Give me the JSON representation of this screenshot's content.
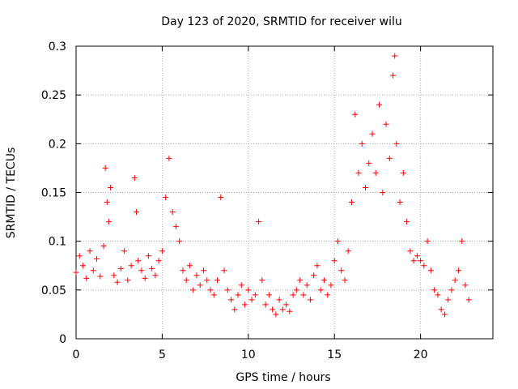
{
  "chart_data": {
    "type": "scatter",
    "title": "Day 123 of 2020, SRMTID for receiver wilu",
    "xlabel": "GPS time / hours",
    "ylabel": "SRMTID / TECUs",
    "xlim": [
      0,
      24.2
    ],
    "ylim": [
      0,
      0.3
    ],
    "xticks": [
      0,
      5,
      10,
      15,
      20
    ],
    "xtick_labels": [
      "0",
      "5",
      "10",
      "15",
      "20"
    ],
    "yticks": [
      0,
      0.05,
      0.1,
      0.15,
      0.2,
      0.25,
      0.3
    ],
    "ytick_labels": [
      "0",
      "0.05",
      "0.1",
      "0.15",
      "0.2",
      "0.25",
      "0.3"
    ],
    "grid": true,
    "marker": "+",
    "color": "#ff0000",
    "series": [
      {
        "name": "SRMTID",
        "points": [
          [
            0.0,
            0.068
          ],
          [
            0.2,
            0.085
          ],
          [
            0.4,
            0.075
          ],
          [
            0.6,
            0.062
          ],
          [
            0.8,
            0.09
          ],
          [
            1.0,
            0.07
          ],
          [
            1.2,
            0.082
          ],
          [
            1.4,
            0.064
          ],
          [
            1.6,
            0.095
          ],
          [
            1.7,
            0.175
          ],
          [
            1.8,
            0.14
          ],
          [
            1.9,
            0.12
          ],
          [
            2.0,
            0.155
          ],
          [
            2.2,
            0.065
          ],
          [
            2.4,
            0.058
          ],
          [
            2.6,
            0.072
          ],
          [
            2.8,
            0.09
          ],
          [
            3.0,
            0.06
          ],
          [
            3.2,
            0.075
          ],
          [
            3.4,
            0.165
          ],
          [
            3.5,
            0.13
          ],
          [
            3.6,
            0.08
          ],
          [
            3.8,
            0.07
          ],
          [
            4.0,
            0.062
          ],
          [
            4.2,
            0.085
          ],
          [
            4.4,
            0.072
          ],
          [
            4.6,
            0.065
          ],
          [
            4.8,
            0.08
          ],
          [
            5.0,
            0.09
          ],
          [
            5.2,
            0.145
          ],
          [
            5.4,
            0.185
          ],
          [
            5.6,
            0.13
          ],
          [
            5.8,
            0.115
          ],
          [
            6.0,
            0.1
          ],
          [
            6.2,
            0.07
          ],
          [
            6.4,
            0.06
          ],
          [
            6.6,
            0.075
          ],
          [
            6.8,
            0.05
          ],
          [
            7.0,
            0.065
          ],
          [
            7.2,
            0.055
          ],
          [
            7.4,
            0.07
          ],
          [
            7.6,
            0.06
          ],
          [
            7.8,
            0.05
          ],
          [
            8.0,
            0.045
          ],
          [
            8.2,
            0.06
          ],
          [
            8.4,
            0.145
          ],
          [
            8.6,
            0.07
          ],
          [
            8.8,
            0.05
          ],
          [
            9.0,
            0.04
          ],
          [
            9.2,
            0.03
          ],
          [
            9.4,
            0.045
          ],
          [
            9.6,
            0.055
          ],
          [
            9.8,
            0.035
          ],
          [
            10.0,
            0.05
          ],
          [
            10.2,
            0.04
          ],
          [
            10.4,
            0.045
          ],
          [
            10.6,
            0.12
          ],
          [
            10.8,
            0.06
          ],
          [
            11.0,
            0.035
          ],
          [
            11.2,
            0.045
          ],
          [
            11.4,
            0.03
          ],
          [
            11.6,
            0.025
          ],
          [
            11.8,
            0.04
          ],
          [
            12.0,
            0.03
          ],
          [
            12.2,
            0.035
          ],
          [
            12.4,
            0.028
          ],
          [
            12.6,
            0.045
          ],
          [
            12.8,
            0.05
          ],
          [
            13.0,
            0.06
          ],
          [
            13.2,
            0.045
          ],
          [
            13.4,
            0.055
          ],
          [
            13.6,
            0.04
          ],
          [
            13.8,
            0.065
          ],
          [
            14.0,
            0.075
          ],
          [
            14.2,
            0.05
          ],
          [
            14.4,
            0.06
          ],
          [
            14.6,
            0.045
          ],
          [
            14.8,
            0.055
          ],
          [
            15.0,
            0.08
          ],
          [
            15.2,
            0.1
          ],
          [
            15.4,
            0.07
          ],
          [
            15.6,
            0.06
          ],
          [
            15.8,
            0.09
          ],
          [
            16.0,
            0.14
          ],
          [
            16.2,
            0.23
          ],
          [
            16.4,
            0.17
          ],
          [
            16.6,
            0.2
          ],
          [
            16.8,
            0.155
          ],
          [
            17.0,
            0.18
          ],
          [
            17.2,
            0.21
          ],
          [
            17.4,
            0.17
          ],
          [
            17.6,
            0.24
          ],
          [
            17.8,
            0.15
          ],
          [
            18.0,
            0.22
          ],
          [
            18.2,
            0.185
          ],
          [
            18.4,
            0.27
          ],
          [
            18.5,
            0.29
          ],
          [
            18.6,
            0.2
          ],
          [
            18.8,
            0.14
          ],
          [
            19.0,
            0.17
          ],
          [
            19.2,
            0.12
          ],
          [
            19.4,
            0.09
          ],
          [
            19.6,
            0.08
          ],
          [
            19.8,
            0.085
          ],
          [
            20.0,
            0.08
          ],
          [
            20.2,
            0.075
          ],
          [
            20.4,
            0.1
          ],
          [
            20.6,
            0.07
          ],
          [
            20.8,
            0.05
          ],
          [
            21.0,
            0.045
          ],
          [
            21.2,
            0.03
          ],
          [
            21.4,
            0.025
          ],
          [
            21.6,
            0.04
          ],
          [
            21.8,
            0.05
          ],
          [
            22.0,
            0.06
          ],
          [
            22.2,
            0.07
          ],
          [
            22.4,
            0.1
          ],
          [
            22.6,
            0.055
          ],
          [
            22.8,
            0.04
          ]
        ]
      }
    ]
  }
}
